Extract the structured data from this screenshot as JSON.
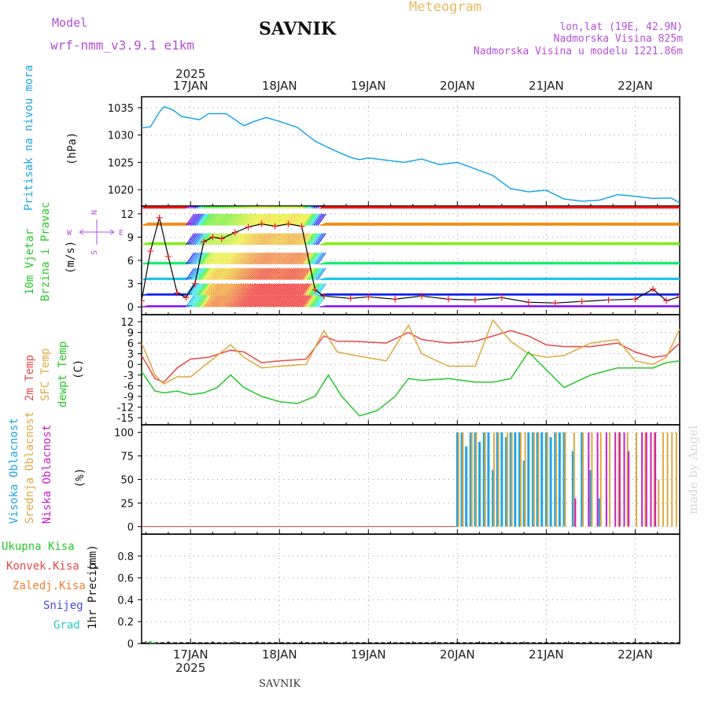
{
  "header": {
    "model_label": "Model",
    "model_name": "wrf-nmm_v3.9.1 e1km",
    "station": "SAVNIK",
    "chart_title": "Meteogram",
    "lonlat": "lon,lat (19E, 42.9N)",
    "elevation": "Nadmorska Visina 825m",
    "model_elevation": "Nadmorska Visina u modelu 1221.86m",
    "watermark": "made by Angel",
    "footer_station": "SAVNIK"
  },
  "colors": {
    "pressure": "#1ea5e6",
    "temp2m": "#e84848",
    "sfc_temp": "#e0a840",
    "dewpt": "#28c828",
    "high_cloud": "#1ea5e6",
    "mid_cloud": "#e0a840",
    "low_cloud": "#c81ec8",
    "total_precip": "#28c828",
    "conv_precip": "#e84848",
    "frozen_precip": "#f08030",
    "snow": "#4848e8",
    "hail": "#28c8c8",
    "purple_text": "#b44fd8"
  },
  "chart_data": [
    {
      "type": "line",
      "panel": "pressure",
      "title": "Pritisak na nivou mora",
      "ylabel": "(hPa)",
      "ylim": [
        1017,
        1037
      ],
      "yticks": [
        1020,
        1025,
        1030,
        1035
      ],
      "x_unit": "days since 2025-01-17 00:00",
      "xlim": [
        -0.55,
        5.5
      ],
      "xticks": [
        "17JAN",
        "18JAN",
        "19JAN",
        "20JAN",
        "21JAN",
        "22JAN"
      ],
      "year": "2025",
      "grid": true,
      "series": [
        {
          "name": "Pritisak na nivou mora",
          "x": [
            -0.55,
            -0.45,
            -0.35,
            -0.3,
            -0.2,
            -0.1,
            0,
            0.1,
            0.2,
            0.4,
            0.6,
            0.7,
            0.85,
            1,
            1.2,
            1.4,
            1.6,
            1.8,
            1.9,
            2,
            2.2,
            2.4,
            2.6,
            2.8,
            3,
            3.2,
            3.4,
            3.6,
            3.8,
            4,
            4.2,
            4.4,
            4.6,
            4.8,
            5,
            5.2,
            5.4,
            5.5
          ],
          "values": [
            1031.3,
            1031.5,
            1034.2,
            1035.2,
            1034.6,
            1033.4,
            1033.1,
            1032.8,
            1033.9,
            1033.9,
            1031.7,
            1032.4,
            1033.2,
            1032.5,
            1031.4,
            1028.9,
            1027.3,
            1025.9,
            1025.5,
            1025.8,
            1025.4,
            1025.0,
            1025.6,
            1024.6,
            1025.0,
            1023.8,
            1022.6,
            1020.2,
            1019.6,
            1019.9,
            1018.3,
            1017.9,
            1018.1,
            1019.1,
            1018.8,
            1018.4,
            1018.5,
            1017.6
          ]
        }
      ]
    },
    {
      "type": "line",
      "panel": "wind",
      "title": "10m Vjetar Brzina i Pravac",
      "ylabel": "(m/s)",
      "ylim": [
        -1,
        13
      ],
      "yticks": [
        0,
        3,
        6,
        9,
        12
      ],
      "direction_key": [
        "N",
        "E",
        "S",
        "W"
      ],
      "series": [
        {
          "name": "10m Vjetar Brzina i Pravac",
          "x": [
            -0.55,
            -0.45,
            -0.35,
            -0.25,
            -0.15,
            -0.05,
            0.05,
            0.15,
            0.25,
            0.35,
            0.5,
            0.65,
            0.8,
            0.95,
            1.1,
            1.25,
            1.4,
            1.5,
            1.8,
            2.0,
            2.3,
            2.6,
            2.9,
            3.2,
            3.5,
            3.8,
            4.1,
            4.4,
            4.7,
            5.0,
            5.2,
            5.35,
            5.5
          ],
          "values": [
            0.8,
            7.2,
            11.5,
            6.5,
            1.8,
            1.2,
            3.0,
            8.4,
            9.0,
            8.8,
            9.6,
            10.3,
            10.7,
            10.4,
            10.7,
            10.4,
            2.2,
            1.4,
            1.1,
            1.3,
            1.0,
            1.4,
            1.0,
            0.9,
            1.2,
            0.6,
            0.5,
            0.7,
            0.9,
            1.0,
            2.3,
            0.8,
            1.3
          ]
        }
      ]
    },
    {
      "type": "line",
      "panel": "temperature",
      "title": "2m Temp / SFC Temp / dewpt Temp",
      "ylabel": "(C)",
      "ylim": [
        -17,
        14
      ],
      "yticks": [
        -15,
        -12,
        -9,
        -6,
        -3,
        0,
        3,
        6,
        9,
        12
      ],
      "series": [
        {
          "name": "2m Temp",
          "x": [
            -0.55,
            -0.4,
            -0.3,
            -0.15,
            0,
            0.2,
            0.45,
            0.6,
            0.8,
            1.0,
            1.3,
            1.5,
            1.65,
            1.85,
            2.2,
            2.45,
            2.6,
            2.9,
            3.2,
            3.4,
            3.6,
            3.8,
            4.0,
            4.2,
            4.5,
            4.8,
            5.0,
            5.2,
            5.35,
            5.5
          ],
          "values": [
            2.5,
            -4.0,
            -5.0,
            -1.0,
            1.5,
            2.0,
            4.0,
            3.5,
            0.5,
            1.0,
            1.5,
            8.0,
            6.5,
            6.5,
            6.0,
            9.0,
            7.0,
            6.0,
            6.5,
            8.0,
            9.5,
            8.0,
            5.5,
            5.0,
            5.0,
            6.0,
            3.5,
            2.0,
            2.5,
            6.0
          ]
        },
        {
          "name": "SFC Temp",
          "x": [
            -0.55,
            -0.4,
            -0.3,
            -0.15,
            0,
            0.2,
            0.45,
            0.6,
            0.8,
            1.0,
            1.3,
            1.5,
            1.65,
            1.85,
            2.2,
            2.45,
            2.6,
            2.9,
            3.2,
            3.4,
            3.6,
            3.8,
            4.0,
            4.2,
            4.5,
            4.8,
            5.0,
            5.2,
            5.35,
            5.5
          ],
          "values": [
            6.0,
            -3.0,
            -5.5,
            -3.5,
            -3.5,
            0.5,
            5.5,
            2.0,
            -1.0,
            -0.5,
            0.0,
            9.5,
            3.5,
            2.5,
            1.0,
            11.0,
            3.0,
            -0.5,
            -0.5,
            12.5,
            6.5,
            3.0,
            2.0,
            2.5,
            6.0,
            7.0,
            1.0,
            0.0,
            2.0,
            10.0
          ]
        },
        {
          "name": "dewpt Temp",
          "x": [
            -0.55,
            -0.4,
            -0.3,
            -0.15,
            0,
            0.15,
            0.3,
            0.45,
            0.6,
            0.8,
            1.0,
            1.2,
            1.4,
            1.55,
            1.7,
            1.9,
            2.1,
            2.3,
            2.45,
            2.6,
            2.9,
            3.2,
            3.4,
            3.6,
            3.8,
            4.0,
            4.2,
            4.5,
            4.8,
            5.0,
            5.2,
            5.35,
            5.5
          ],
          "values": [
            -2.0,
            -7.5,
            -8.0,
            -7.5,
            -8.5,
            -8.0,
            -6.5,
            -3.0,
            -6.5,
            -9.0,
            -10.5,
            -11.0,
            -9.0,
            -3.0,
            -9.0,
            -14.5,
            -13.0,
            -9.0,
            -4.0,
            -4.5,
            -4.0,
            -5.0,
            -5.0,
            -4.0,
            3.5,
            -1.5,
            -6.5,
            -3.0,
            -1.0,
            -1.0,
            -1.0,
            0.5,
            1.0
          ]
        }
      ]
    },
    {
      "type": "bar",
      "panel": "cloud",
      "title": "Visoka Oblacnost / Srednja Oblacnost / Niska Oblacnost",
      "ylabel": "(%)",
      "ylim": [
        -8,
        108
      ],
      "yticks": [
        0,
        25,
        50,
        75,
        100
      ],
      "series": [
        {
          "name": "Visoka Oblacnost",
          "x": [
            3.0,
            3.05,
            3.1,
            3.15,
            3.2,
            3.25,
            3.3,
            3.35,
            3.4,
            3.45,
            3.5,
            3.55,
            3.6,
            3.65,
            3.7,
            3.75,
            3.8,
            3.85,
            3.9,
            3.95,
            4.0,
            4.05,
            4.1,
            4.15,
            4.2,
            4.3,
            4.4,
            4.5,
            4.6,
            4.7,
            4.8,
            4.9,
            5.0,
            5.1,
            5.2,
            5.3,
            5.4
          ],
          "values": [
            100,
            100,
            85,
            100,
            100,
            90,
            100,
            100,
            60,
            100,
            100,
            95,
            100,
            100,
            100,
            70,
            100,
            100,
            100,
            100,
            100,
            95,
            100,
            100,
            100,
            80,
            100,
            60,
            30,
            0,
            0,
            0,
            0,
            0,
            0,
            0,
            0
          ]
        },
        {
          "name": "Srednja Oblacnost",
          "x": [
            3.0,
            3.05,
            3.15,
            3.2,
            3.3,
            3.4,
            3.45,
            3.55,
            3.6,
            3.7,
            3.75,
            3.85,
            3.9,
            4.0,
            4.1,
            4.2,
            4.3,
            4.4,
            4.5,
            4.6,
            4.7,
            4.8,
            4.9,
            5.0,
            5.1,
            5.2,
            5.25,
            5.3,
            5.35,
            5.4,
            5.45,
            5.5
          ],
          "values": [
            100,
            100,
            100,
            100,
            100,
            100,
            100,
            100,
            100,
            100,
            100,
            100,
            100,
            100,
            100,
            100,
            100,
            100,
            100,
            100,
            100,
            100,
            100,
            100,
            100,
            100,
            50,
            100,
            100,
            100,
            100,
            100
          ]
        },
        {
          "name": "Niska Oblacnost",
          "x": [
            4.3,
            4.45,
            4.55,
            4.65,
            4.75,
            4.8,
            4.85,
            4.9,
            5.05,
            5.1,
            5.15,
            5.2
          ],
          "values": [
            30,
            100,
            100,
            100,
            100,
            100,
            100,
            80,
            100,
            100,
            100,
            100
          ]
        }
      ]
    },
    {
      "type": "bar",
      "panel": "precip",
      "title": "1hr Precip",
      "ylabel": "(mm)",
      "ylim": [
        0,
        1.0
      ],
      "yticks": [
        0,
        0.2,
        0.4,
        0.6,
        0.8
      ],
      "legend": [
        "Ukupna Kisa",
        "Konvek.Kisa",
        "Zaledj.Kisa",
        "Snijeg",
        "Grad"
      ],
      "series": [
        {
          "name": "Ukupna Kisa",
          "x": [
            -0.45,
            -0.4
          ],
          "values": [
            0.02,
            0.015
          ]
        }
      ]
    }
  ]
}
